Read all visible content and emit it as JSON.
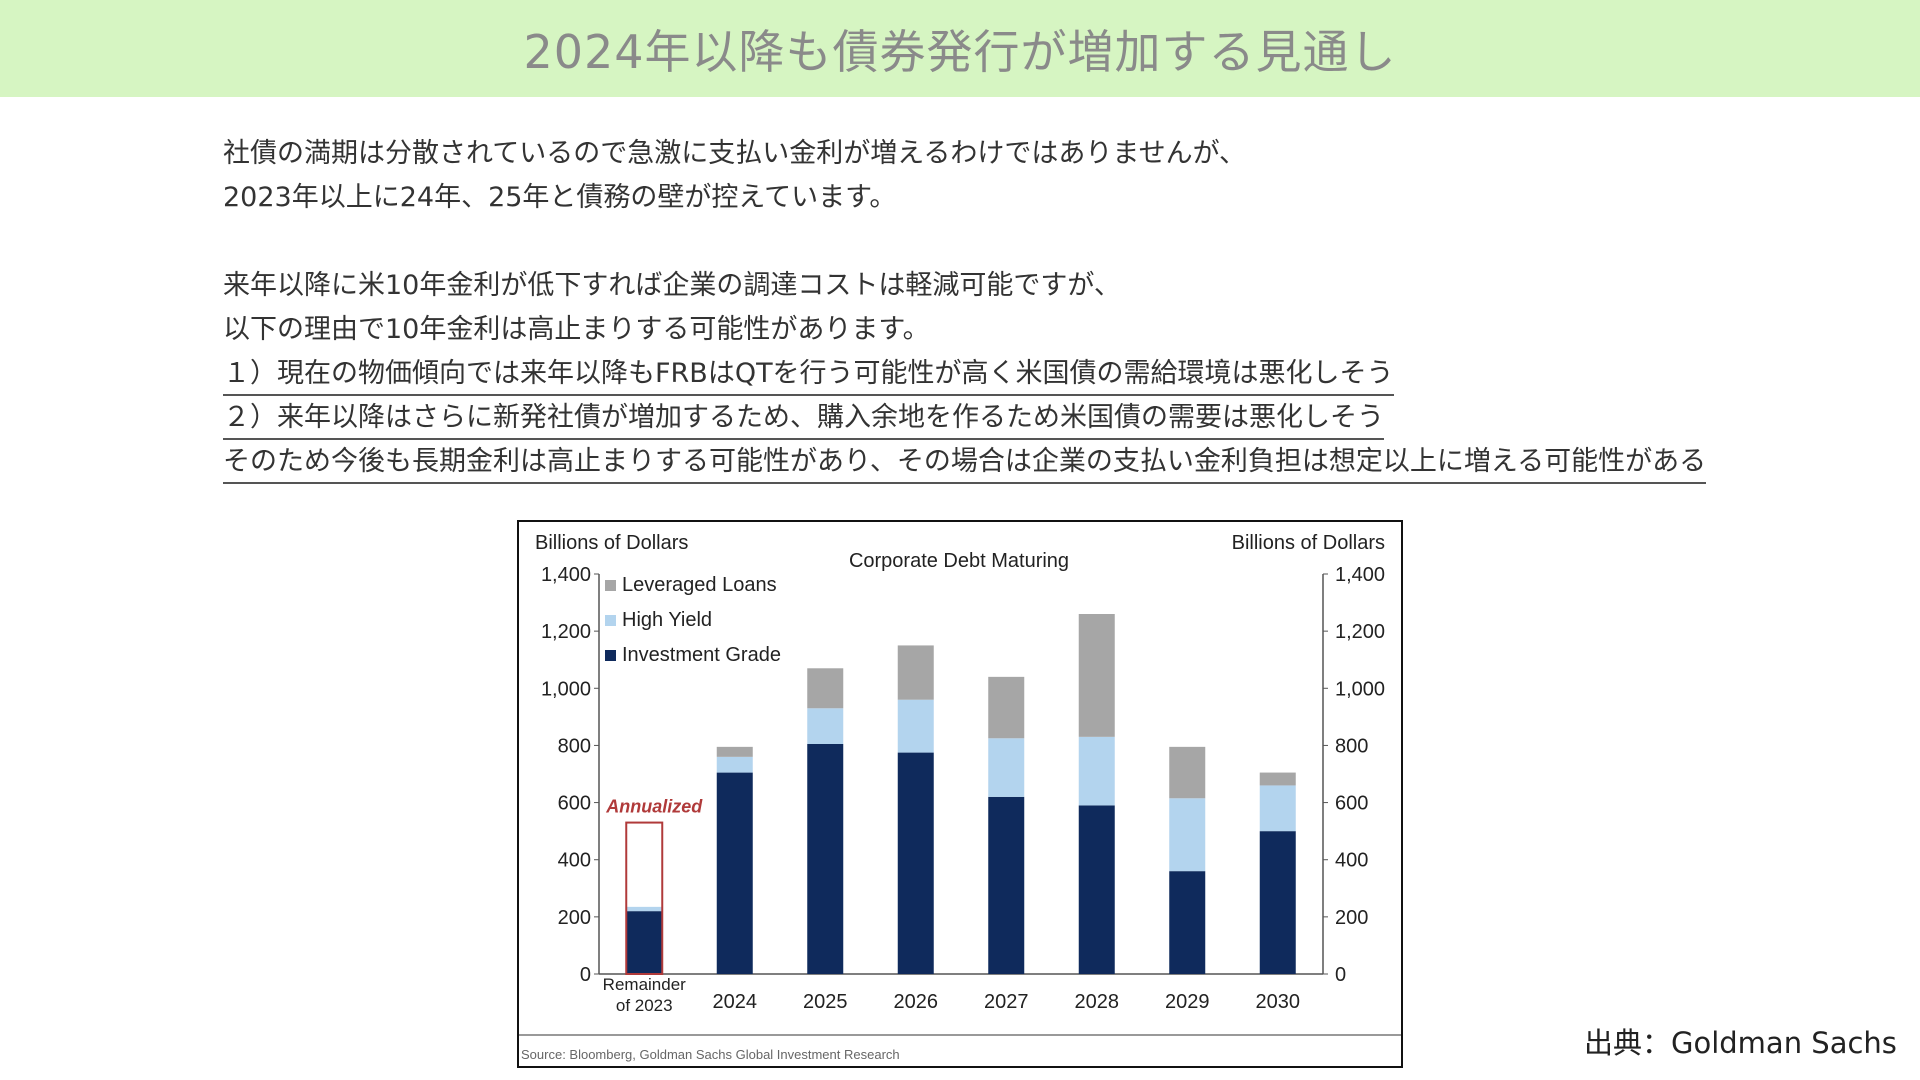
{
  "banner": {
    "title": "2024年以降も債券発行が増加する見通し"
  },
  "body": {
    "lines": [
      "社債の満期は分散されているので急激に支払い金利が増えるわけではありませんが、",
      "2023年以上に24年、25年と債務の壁が控えています。",
      "来年以降に米10年金利が低下すれば企業の調達コストは軽減可能ですが、",
      "以下の理由で10年金利は高止まりする可能性があります。"
    ],
    "underlined": [
      "１）現在の物価傾向では来年以降もFRBはQTを行う可能性が高く米国債の需給環境は悪化しそう",
      "２）来年以降はさらに新発社債が増加するため、購入余地を作るため米国債の需要は悪化しそう",
      "そのため今後も長期金利は高止まりする可能性があり、その場合は企業の支払い金利負担は想定以上に増える可能性がある"
    ]
  },
  "source_credit": "出典：Goldman Sachs",
  "chart_data": {
    "type": "bar",
    "stacked": true,
    "title": "Corporate Debt Maturing",
    "ylabel_left": "Billions of Dollars",
    "ylabel_right": "Billions of Dollars",
    "ylim": [
      0,
      1400
    ],
    "yticks": [
      "0",
      "200",
      "400",
      "600",
      "800",
      "1,000",
      "1,200",
      "1,400"
    ],
    "categories": [
      "Remainder of 2023",
      "2024",
      "2025",
      "2026",
      "2027",
      "2028",
      "2029",
      "2030"
    ],
    "series": [
      {
        "name": "Investment Grade",
        "color": "#0f2a5c",
        "values": [
          220,
          705,
          805,
          775,
          620,
          590,
          360,
          500
        ]
      },
      {
        "name": "High Yield",
        "color": "#b3d4ee",
        "values": [
          15,
          55,
          125,
          185,
          205,
          240,
          255,
          160
        ]
      },
      {
        "name": "Leveraged Loans",
        "color": "#a6a6a6",
        "values": [
          0,
          35,
          140,
          190,
          215,
          430,
          180,
          45
        ]
      }
    ],
    "annotation": {
      "text": "Annualized",
      "category_index": 0,
      "total": 530,
      "color": "#b03a3a"
    },
    "legend_position": "top-left",
    "grid": false,
    "source_note": "Source: Bloomberg, Goldman Sachs Global Investment Research"
  }
}
